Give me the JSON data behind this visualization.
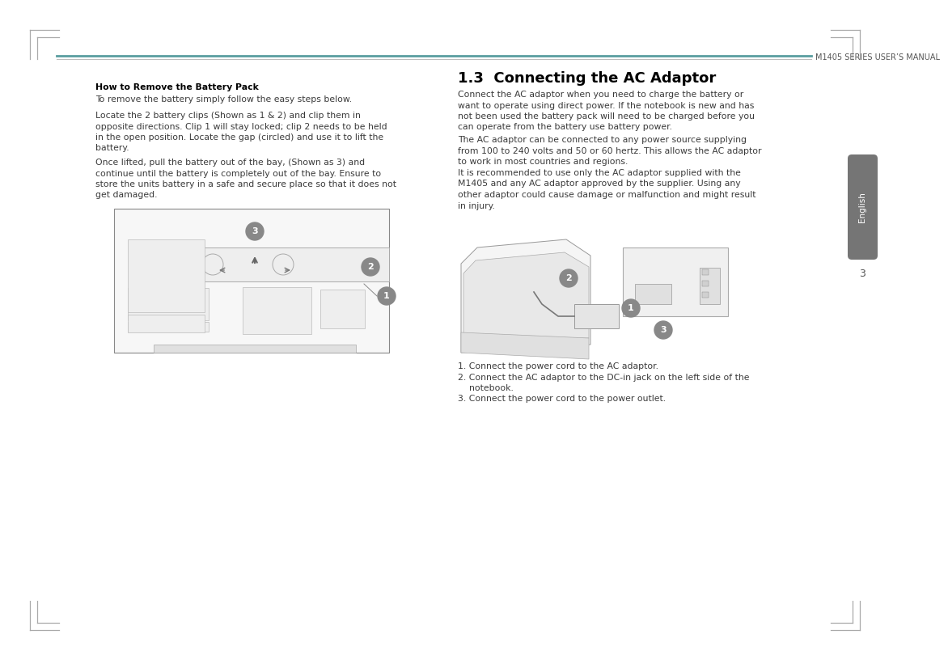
{
  "bg_color": "#ffffff",
  "header_line_teal": "#5a9ea0",
  "header_line_gray": "#bbbbbb",
  "header_text": "M1405 SERIES USER’S MANUAL",
  "section_title": "1.3  Connecting the AC Adaptor",
  "left_bold_title": "How to Remove the Battery Pack",
  "left_para1": "To remove the battery simply follow the easy steps below.",
  "left_para2_line1": "Locate the 2 battery clips (Shown as 1 & 2) and clip them in",
  "left_para2_line2": "opposite directions. Clip 1 will stay locked; clip 2 needs to be held",
  "left_para2_line3": "in the open position. Locate the gap (circled) and use it to lift the",
  "left_para2_line4": "battery.",
  "left_para3_line1": "Once lifted, pull the battery out of the bay, (Shown as 3) and",
  "left_para3_line2": "continue until the battery is completely out of the bay. Ensure to",
  "left_para3_line3": "store the units battery in a safe and secure place so that it does not",
  "left_para3_line4": "get damaged.",
  "right_para1_line1": "Connect the AC adaptor when you need to charge the battery or",
  "right_para1_line2": "want to operate using direct power. If the notebook is new and has",
  "right_para1_line3": "not been used the battery pack will need to be charged before you",
  "right_para1_line4": "can operate from the battery use battery power.",
  "right_para2_line1": "The AC adaptor can be connected to any power source supplying",
  "right_para2_line2": "from 100 to 240 volts and 50 or 60 hertz. This allows the AC adaptor",
  "right_para2_line3": "to work in most countries and regions.",
  "right_para3_line1": "It is recommended to use only the AC adaptor supplied with the",
  "right_para3_line2": "M1405 and any AC adaptor approved by the supplier. Using any",
  "right_para3_line3": "other adaptor could cause damage or malfunction and might result",
  "right_para3_line4": "in injury.",
  "list_item1": "1. Connect the power cord to the AC adaptor.",
  "list_item2": "2. Connect the AC adaptor to the DC-in jack on the left side of the",
  "list_item2b": "    notebook.",
  "list_item3": "3. Connect the power cord to the power outlet.",
  "english_tab_color": "#757575",
  "page_number": "3",
  "text_color": "#3a3a3a",
  "badge_color": "#888888",
  "corner_color": "#aaaaaa"
}
